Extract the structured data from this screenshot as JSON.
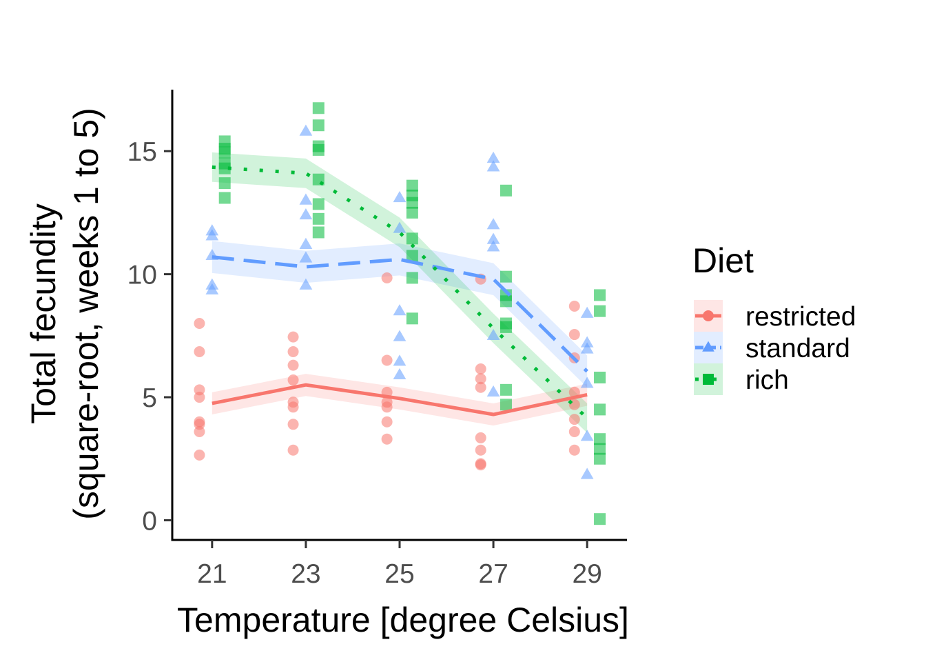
{
  "chart_data": {
    "type": "scatter",
    "xlabel": "Temperature [degree Celsius]",
    "ylabel_line1": "Total fecundity",
    "ylabel_line2": "(square-root, weeks 1 to 5)",
    "x_ticks": [
      21,
      23,
      25,
      27,
      29
    ],
    "y_ticks": [
      0,
      5,
      10,
      15
    ],
    "xlim": [
      20.15,
      29.85
    ],
    "ylim": [
      -0.8,
      17.5
    ],
    "grid": false,
    "legend": {
      "title": "Diet",
      "position": "right"
    },
    "series": [
      {
        "name": "restricted",
        "color": "#F8766D",
        "marker": "circle",
        "linestyle": "solid",
        "offset": -0.27,
        "points": [
          {
            "x": 21,
            "y": [
              8.0,
              6.85,
              5.3,
              5.0,
              4.0,
              3.9,
              3.6,
              2.65
            ]
          },
          {
            "x": 23,
            "y": [
              7.45,
              6.85,
              6.3,
              5.7,
              4.8,
              4.6,
              3.9,
              2.85
            ]
          },
          {
            "x": 25,
            "y": [
              9.85,
              6.5,
              5.2,
              4.8,
              4.6,
              4.0,
              3.3
            ]
          },
          {
            "x": 27,
            "y": [
              9.8,
              6.15,
              5.75,
              5.4,
              3.35,
              2.85,
              2.3,
              2.25
            ]
          },
          {
            "x": 29,
            "y": [
              8.7,
              7.55,
              6.6,
              5.2,
              4.7,
              4.1,
              3.6,
              2.85
            ]
          }
        ],
        "trend": {
          "x": [
            21,
            23,
            25,
            27,
            29
          ],
          "y": [
            4.75,
            5.5,
            4.95,
            4.3,
            5.1
          ],
          "lower": [
            4.3,
            5.05,
            4.5,
            3.85,
            4.65
          ],
          "upper": [
            5.2,
            5.95,
            5.4,
            4.75,
            5.55
          ]
        }
      },
      {
        "name": "standard",
        "color": "#619CFF",
        "marker": "triangle",
        "linestyle": "dashed",
        "offset": 0,
        "points": [
          {
            "x": 21,
            "y": [
              11.75,
              11.55,
              10.75,
              9.55,
              9.35
            ]
          },
          {
            "x": 23,
            "y": [
              15.8,
              13.0,
              12.4,
              11.2,
              10.65,
              9.55
            ]
          },
          {
            "x": 25,
            "y": [
              13.1,
              11.85,
              8.5,
              7.45,
              6.45,
              5.9
            ]
          },
          {
            "x": 27,
            "y": [
              14.7,
              14.35,
              12.0,
              11.4,
              11.1,
              7.5,
              5.2
            ]
          },
          {
            "x": 29,
            "y": [
              8.4,
              7.2,
              6.95,
              5.55,
              3.4,
              1.85
            ]
          }
        ],
        "trend": {
          "x": [
            21,
            23,
            25,
            27,
            29
          ],
          "y": [
            10.7,
            10.3,
            10.6,
            9.8,
            6.05
          ],
          "lower": [
            10.05,
            9.65,
            9.95,
            9.15,
            5.4
          ],
          "upper": [
            11.35,
            10.95,
            11.25,
            10.45,
            6.7
          ]
        }
      },
      {
        "name": "rich",
        "color": "#00BA38",
        "marker": "square",
        "linestyle": "dotted",
        "offset": 0.27,
        "points": [
          {
            "x": 21,
            "y": [
              15.4,
              15.1,
              14.95,
              14.5,
              14.3,
              13.7,
              13.1
            ]
          },
          {
            "x": 23,
            "y": [
              16.75,
              16.05,
              15.2,
              15.05,
              13.85,
              12.85,
              12.25,
              11.7
            ]
          },
          {
            "x": 25,
            "y": [
              13.6,
              13.2,
              12.9,
              12.5,
              11.45,
              10.75,
              9.85,
              8.2
            ]
          },
          {
            "x": 27,
            "y": [
              13.4,
              9.9,
              9.15,
              8.9,
              8.0,
              7.85,
              5.3,
              4.7
            ]
          },
          {
            "x": 29,
            "y": [
              9.15,
              8.5,
              5.8,
              4.5,
              3.3,
              2.9,
              2.5,
              0.05
            ]
          }
        ],
        "trend": {
          "x": [
            21,
            23,
            25,
            27,
            29
          ],
          "y": [
            14.35,
            14.1,
            11.7,
            7.8,
            4.15
          ],
          "lower": [
            13.75,
            13.5,
            11.1,
            7.2,
            3.55
          ],
          "upper": [
            14.95,
            14.7,
            12.3,
            8.4,
            4.75
          ]
        }
      }
    ]
  }
}
